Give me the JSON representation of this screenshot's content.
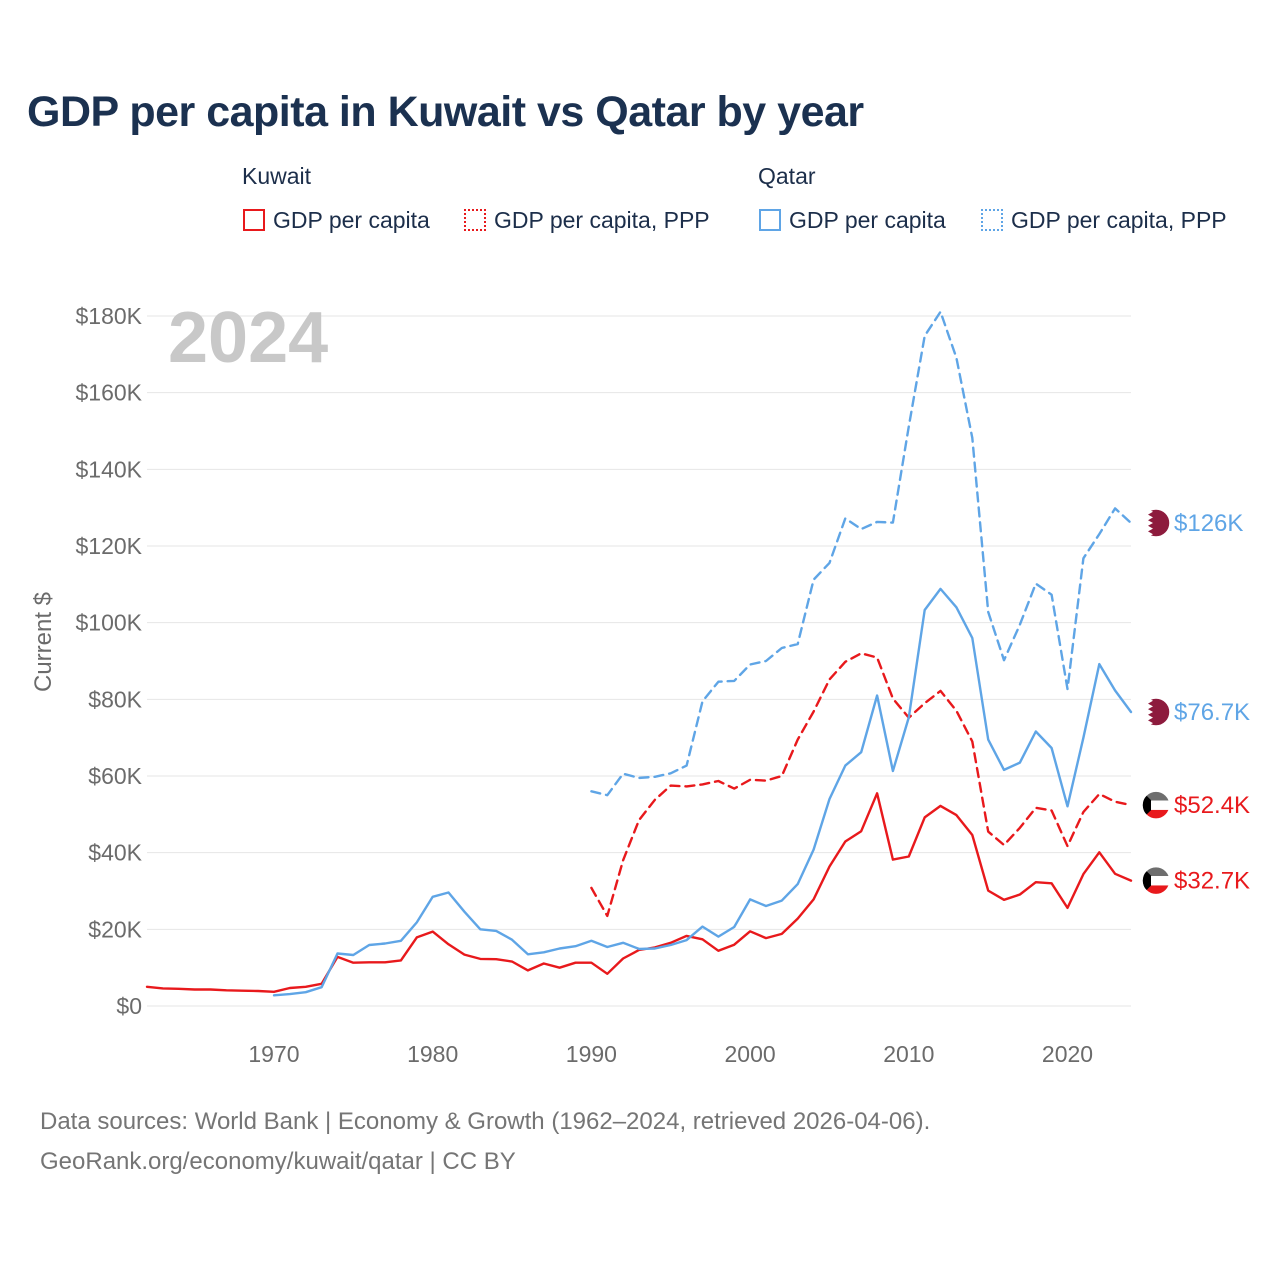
{
  "title": "GDP per capita in Kuwait vs Qatar by year",
  "legend": {
    "kuwait": {
      "group": "Kuwait",
      "solid_label": "GDP per capita",
      "dashed_label": "GDP per capita, PPP"
    },
    "qatar": {
      "group": "Qatar",
      "solid_label": "GDP per capita",
      "dashed_label": "GDP per capita, PPP"
    }
  },
  "colors": {
    "kuwait": "#e8191c",
    "qatar": "#5fa5e6",
    "qatar_flag": "#8d1b3d",
    "grid": "#e6e6e6",
    "axis_text": "#6b6b6b",
    "year_watermark": "#c8c8c8"
  },
  "footer": {
    "line1": "Data sources: World Bank | Economy & Growth (1962–2024, retrieved 2026-04-06).",
    "line2": "GeoRank.org/economy/kuwait/qatar | CC BY"
  },
  "chart_data": {
    "type": "line",
    "title": "GDP per capita in Kuwait vs Qatar by year",
    "year_label": "2024",
    "ylabel": "Current $",
    "xlabel": "",
    "xlim": [
      1962,
      2024
    ],
    "ylim": [
      0,
      180000
    ],
    "x_ticks": [
      1970,
      1980,
      1990,
      2000,
      2010,
      2020
    ],
    "y_ticks": [
      {
        "value": 0,
        "label": "$0"
      },
      {
        "value": 20000,
        "label": "$20K"
      },
      {
        "value": 40000,
        "label": "$40K"
      },
      {
        "value": 60000,
        "label": "$60K"
      },
      {
        "value": 80000,
        "label": "$80K"
      },
      {
        "value": 100000,
        "label": "$100K"
      },
      {
        "value": 120000,
        "label": "$120K"
      },
      {
        "value": 140000,
        "label": "$140K"
      },
      {
        "value": 160000,
        "label": "$160K"
      },
      {
        "value": 180000,
        "label": "$180K"
      }
    ],
    "grid": true,
    "series": [
      {
        "name": "Kuwait GDP per capita",
        "country": "kuwait",
        "style": "solid",
        "end_label": "$32.7K",
        "x": [
          1962,
          1963,
          1964,
          1965,
          1966,
          1967,
          1968,
          1969,
          1970,
          1971,
          1972,
          1973,
          1974,
          1975,
          1976,
          1977,
          1978,
          1979,
          1980,
          1981,
          1982,
          1983,
          1984,
          1985,
          1986,
          1987,
          1988,
          1989,
          1990,
          1991,
          1992,
          1993,
          1994,
          1995,
          1996,
          1997,
          1998,
          1999,
          2000,
          2001,
          2002,
          2003,
          2004,
          2005,
          2006,
          2007,
          2008,
          2009,
          2010,
          2011,
          2012,
          2013,
          2014,
          2015,
          2016,
          2017,
          2018,
          2019,
          2020,
          2021,
          2022,
          2023,
          2024
        ],
        "values": [
          5000,
          4600,
          4500,
          4300,
          4300,
          4100,
          4000,
          3900,
          3700,
          4700,
          5000,
          5800,
          12800,
          11300,
          11400,
          11400,
          11900,
          17900,
          19400,
          16100,
          13400,
          12300,
          12200,
          11600,
          9300,
          11100,
          10000,
          11300,
          11300,
          8400,
          12400,
          14600,
          15300,
          16500,
          18300,
          17400,
          14400,
          16000,
          19500,
          17700,
          18800,
          22800,
          27800,
          36400,
          42900,
          45600,
          55500,
          38200,
          39000,
          49200,
          52200,
          49800,
          44600,
          30100,
          27700,
          29100,
          32300,
          32000,
          25600,
          34400,
          40100,
          34500,
          32700
        ]
      },
      {
        "name": "Kuwait GDP per capita, PPP",
        "country": "kuwait",
        "style": "dashed",
        "end_label": "$52.4K",
        "x": [
          1990,
          1991,
          1992,
          1993,
          1994,
          1995,
          1996,
          1997,
          1998,
          1999,
          2000,
          2001,
          2002,
          2003,
          2004,
          2005,
          2006,
          2007,
          2008,
          2009,
          2010,
          2011,
          2012,
          2013,
          2014,
          2015,
          2016,
          2017,
          2018,
          2019,
          2020,
          2021,
          2022,
          2023,
          2024
        ],
        "values": [
          30800,
          23500,
          38000,
          48500,
          53800,
          57500,
          57300,
          57800,
          58700,
          56700,
          59000,
          58800,
          60000,
          69500,
          76800,
          85200,
          89800,
          92000,
          90900,
          80200,
          75200,
          79000,
          82200,
          77000,
          69000,
          45500,
          42000,
          46500,
          51700,
          51000,
          41700,
          50600,
          55300,
          53300,
          52400
        ]
      },
      {
        "name": "Qatar GDP per capita",
        "country": "qatar",
        "style": "solid",
        "end_label": "$76.7K",
        "x": [
          1970,
          1971,
          1972,
          1973,
          1974,
          1975,
          1976,
          1977,
          1978,
          1979,
          1980,
          1981,
          1982,
          1983,
          1984,
          1985,
          1986,
          1987,
          1988,
          1989,
          1990,
          1991,
          1992,
          1993,
          1994,
          1995,
          1996,
          1997,
          1998,
          1999,
          2000,
          2001,
          2002,
          2003,
          2004,
          2005,
          2006,
          2007,
          2008,
          2009,
          2010,
          2011,
          2012,
          2013,
          2014,
          2015,
          2016,
          2017,
          2018,
          2019,
          2020,
          2021,
          2022,
          2023,
          2024
        ],
        "values": [
          2800,
          3100,
          3600,
          4900,
          13700,
          13300,
          15900,
          16300,
          17000,
          21800,
          28500,
          29600,
          24600,
          20000,
          19600,
          17300,
          13500,
          14000,
          15000,
          15600,
          17000,
          15400,
          16500,
          14900,
          15000,
          15900,
          17200,
          20700,
          18100,
          20600,
          27800,
          26100,
          27500,
          31800,
          40800,
          54000,
          62700,
          66200,
          81000,
          61300,
          75300,
          103300,
          108800,
          104000,
          96000,
          69500,
          61600,
          63500,
          71600,
          67300,
          52100,
          70000,
          89200,
          82300,
          76700
        ]
      },
      {
        "name": "Qatar GDP per capita, PPP",
        "country": "qatar",
        "style": "dashed",
        "end_label": "$126K",
        "x": [
          1990,
          1991,
          1992,
          1993,
          1994,
          1995,
          1996,
          1997,
          1998,
          1999,
          2000,
          2001,
          2002,
          2003,
          2004,
          2005,
          2006,
          2007,
          2008,
          2009,
          2010,
          2011,
          2012,
          2013,
          2014,
          2015,
          2016,
          2017,
          2018,
          2019,
          2020,
          2021,
          2022,
          2023,
          2024
        ],
        "values": [
          56000,
          55000,
          60600,
          59500,
          59800,
          60700,
          62700,
          79500,
          84600,
          84800,
          89100,
          90000,
          93400,
          94400,
          111200,
          115600,
          127200,
          124400,
          126300,
          126100,
          151200,
          174800,
          181100,
          169100,
          148200,
          102800,
          90200,
          99500,
          110200,
          107300,
          82700,
          116800,
          123100,
          129800,
          126000
        ]
      }
    ]
  }
}
